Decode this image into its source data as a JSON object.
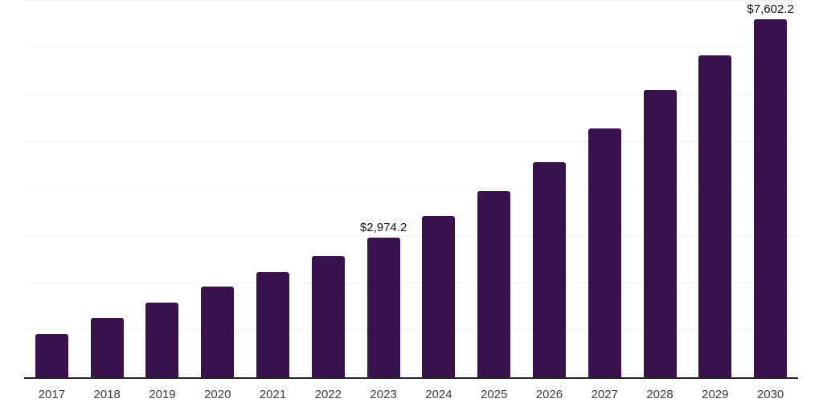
{
  "chart_data": {
    "type": "bar",
    "categories": [
      "2017",
      "2018",
      "2019",
      "2020",
      "2021",
      "2022",
      "2023",
      "2024",
      "2025",
      "2026",
      "2027",
      "2028",
      "2029",
      "2030"
    ],
    "values": [
      920.0,
      1262.0,
      1590.0,
      1935.0,
      2240.0,
      2578.0,
      2974.2,
      3430.0,
      3952.0,
      4568.0,
      5288.0,
      6100.0,
      6838.0,
      7602.2
    ],
    "value_labels": {
      "2023": "$2,974.2",
      "2030": "$7,602.2"
    },
    "title": "",
    "xlabel": "",
    "ylabel": "",
    "ylim": [
      0,
      8000
    ],
    "grid": true,
    "grid_step": 1000,
    "legend": "none",
    "bar_color": "#38124D"
  },
  "colors": {
    "background": "#FFFFFF",
    "bar": "#38124D",
    "gridline": "#F2F2F2",
    "axis_line": "#262626",
    "tick_label": "#3D3D3D",
    "value_label": "#111111"
  }
}
